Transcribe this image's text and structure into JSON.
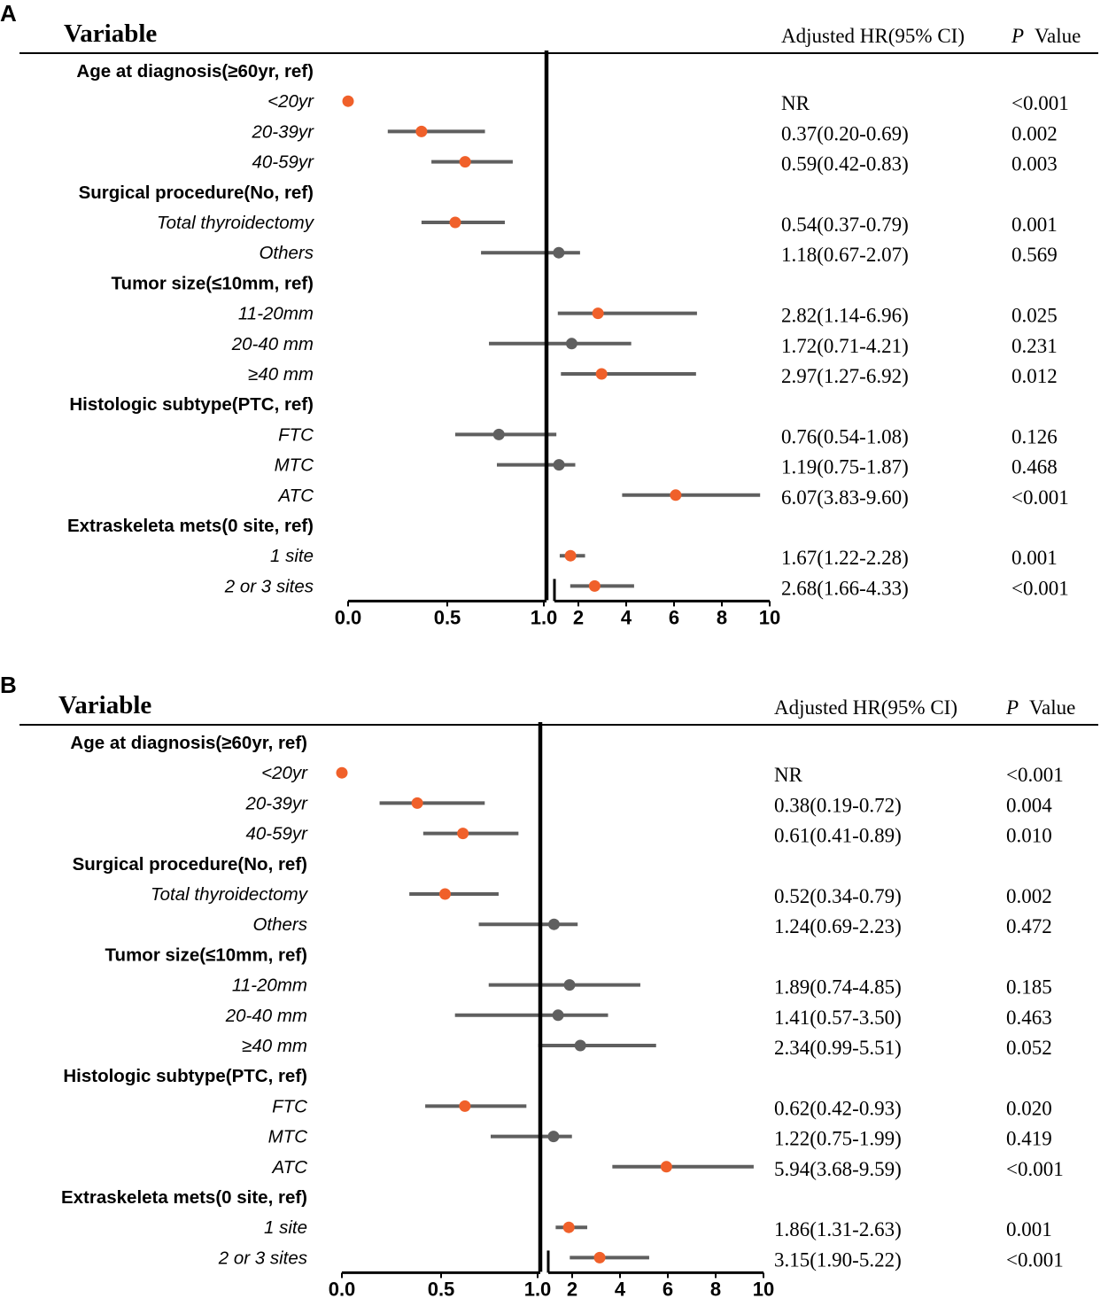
{
  "colors": {
    "significant": "#F0602A",
    "nonsignificant": "#5F5F5F",
    "axis": "#000000"
  },
  "headers": {
    "variable": "Variable",
    "hr": "Adjusted HR(95% CI)",
    "p_letter": "P",
    "p_rest": "Value"
  },
  "axis_ticks_left": [
    "0.0",
    "0.5",
    "1.0"
  ],
  "axis_ticks_right": [
    "2",
    "4",
    "6",
    "8",
    "10"
  ],
  "chart_data": [
    {
      "type": "forest",
      "panel": "A",
      "xlim_left": [
        0,
        1
      ],
      "xlim_right": [
        1,
        10
      ],
      "groups": [
        {
          "label": "Age at diagnosis(≥60yr, ref)",
          "rows": [
            {
              "label": "<20yr",
              "hr": 0.0,
              "lo": null,
              "hi": null,
              "hr_text": "NR",
              "p": "<0.001",
              "sig": true
            },
            {
              "label": "20-39yr",
              "hr": 0.37,
              "lo": 0.2,
              "hi": 0.69,
              "hr_text": "0.37(0.20-0.69)",
              "p": "0.002",
              "sig": true
            },
            {
              "label": "40-59yr",
              "hr": 0.59,
              "lo": 0.42,
              "hi": 0.83,
              "hr_text": "0.59(0.42-0.83)",
              "p": "0.003",
              "sig": true
            }
          ]
        },
        {
          "label": "Surgical procedure(No, ref)",
          "rows": [
            {
              "label": "Total thyroidectomy",
              "hr": 0.54,
              "lo": 0.37,
              "hi": 0.79,
              "hr_text": "0.54(0.37-0.79)",
              "p": "0.001",
              "sig": true
            },
            {
              "label": "Others",
              "hr": 1.18,
              "lo": 0.67,
              "hi": 2.07,
              "hr_text": "1.18(0.67-2.07)",
              "p": "0.569",
              "sig": false
            }
          ]
        },
        {
          "label": "Tumor size(≤10mm, ref)",
          "rows": [
            {
              "label": "11-20mm",
              "hr": 2.82,
              "lo": 1.14,
              "hi": 6.96,
              "hr_text": "2.82(1.14-6.96)",
              "p": "0.025",
              "sig": true
            },
            {
              "label": "20-40 mm",
              "hr": 1.72,
              "lo": 0.71,
              "hi": 4.21,
              "hr_text": "1.72(0.71-4.21)",
              "p": "0.231",
              "sig": false
            },
            {
              "label": "≥40 mm",
              "hr": 2.97,
              "lo": 1.27,
              "hi": 6.92,
              "hr_text": "2.97(1.27-6.92)",
              "p": "0.012",
              "sig": true
            }
          ]
        },
        {
          "label": "Histologic subtype(PTC, ref)",
          "rows": [
            {
              "label": "FTC",
              "hr": 0.76,
              "lo": 0.54,
              "hi": 1.08,
              "hr_text": "0.76(0.54-1.08)",
              "p": "0.126",
              "sig": false
            },
            {
              "label": "MTC",
              "hr": 1.19,
              "lo": 0.75,
              "hi": 1.87,
              "hr_text": "1.19(0.75-1.87)",
              "p": "0.468",
              "sig": false
            },
            {
              "label": "ATC",
              "hr": 6.07,
              "lo": 3.83,
              "hi": 9.6,
              "hr_text": "6.07(3.83-9.60)",
              "p": "<0.001",
              "sig": true
            }
          ]
        },
        {
          "label": "Extraskeleta mets(0 site, ref)",
          "rows": [
            {
              "label": "1 site",
              "hr": 1.67,
              "lo": 1.22,
              "hi": 2.28,
              "hr_text": "1.67(1.22-2.28)",
              "p": "0.001",
              "sig": true
            },
            {
              "label": "2 or 3 sites",
              "hr": 2.68,
              "lo": 1.66,
              "hi": 4.33,
              "hr_text": "2.68(1.66-4.33)",
              "p": "<0.001",
              "sig": true
            }
          ]
        }
      ]
    },
    {
      "type": "forest",
      "panel": "B",
      "xlim_left": [
        0,
        1
      ],
      "xlim_right": [
        1,
        10
      ],
      "groups": [
        {
          "label": "Age at diagnosis(≥60yr, ref)",
          "rows": [
            {
              "label": "<20yr",
              "hr": 0.0,
              "lo": null,
              "hi": null,
              "hr_text": "NR",
              "p": "<0.001",
              "sig": true
            },
            {
              "label": "20-39yr",
              "hr": 0.38,
              "lo": 0.19,
              "hi": 0.72,
              "hr_text": "0.38(0.19-0.72)",
              "p": "0.004",
              "sig": true
            },
            {
              "label": "40-59yr",
              "hr": 0.61,
              "lo": 0.41,
              "hi": 0.89,
              "hr_text": "0.61(0.41-0.89)",
              "p": "0.010",
              "sig": true
            }
          ]
        },
        {
          "label": "Surgical procedure(No, ref)",
          "rows": [
            {
              "label": "Total thyroidectomy",
              "hr": 0.52,
              "lo": 0.34,
              "hi": 0.79,
              "hr_text": "0.52(0.34-0.79)",
              "p": "0.002",
              "sig": true
            },
            {
              "label": "Others",
              "hr": 1.24,
              "lo": 0.69,
              "hi": 2.23,
              "hr_text": "1.24(0.69-2.23)",
              "p": "0.472",
              "sig": false
            }
          ]
        },
        {
          "label": "Tumor size(≤10mm, ref)",
          "rows": [
            {
              "label": "11-20mm",
              "hr": 1.89,
              "lo": 0.74,
              "hi": 4.85,
              "hr_text": "1.89(0.74-4.85)",
              "p": "0.185",
              "sig": false
            },
            {
              "label": "20-40 mm",
              "hr": 1.41,
              "lo": 0.57,
              "hi": 3.5,
              "hr_text": "1.41(0.57-3.50)",
              "p": "0.463",
              "sig": false
            },
            {
              "label": "≥40 mm",
              "hr": 2.34,
              "lo": 0.99,
              "hi": 5.51,
              "hr_text": "2.34(0.99-5.51)",
              "p": "0.052",
              "sig": false
            }
          ]
        },
        {
          "label": "Histologic subtype(PTC, ref)",
          "rows": [
            {
              "label": "FTC",
              "hr": 0.62,
              "lo": 0.42,
              "hi": 0.93,
              "hr_text": "0.62(0.42-0.93)",
              "p": "0.020",
              "sig": true
            },
            {
              "label": "MTC",
              "hr": 1.22,
              "lo": 0.75,
              "hi": 1.99,
              "hr_text": "1.22(0.75-1.99)",
              "p": "0.419",
              "sig": false
            },
            {
              "label": "ATC",
              "hr": 5.94,
              "lo": 3.68,
              "hi": 9.59,
              "hr_text": "5.94(3.68-9.59)",
              "p": "<0.001",
              "sig": true
            }
          ]
        },
        {
          "label": "Extraskeleta mets(0 site, ref)",
          "rows": [
            {
              "label": "1 site",
              "hr": 1.86,
              "lo": 1.31,
              "hi": 2.63,
              "hr_text": "1.86(1.31-2.63)",
              "p": "0.001",
              "sig": true
            },
            {
              "label": "2 or 3 sites",
              "hr": 3.15,
              "lo": 1.9,
              "hi": 5.22,
              "hr_text": "3.15(1.90-5.22)",
              "p": "<0.001",
              "sig": true
            }
          ]
        }
      ]
    }
  ]
}
